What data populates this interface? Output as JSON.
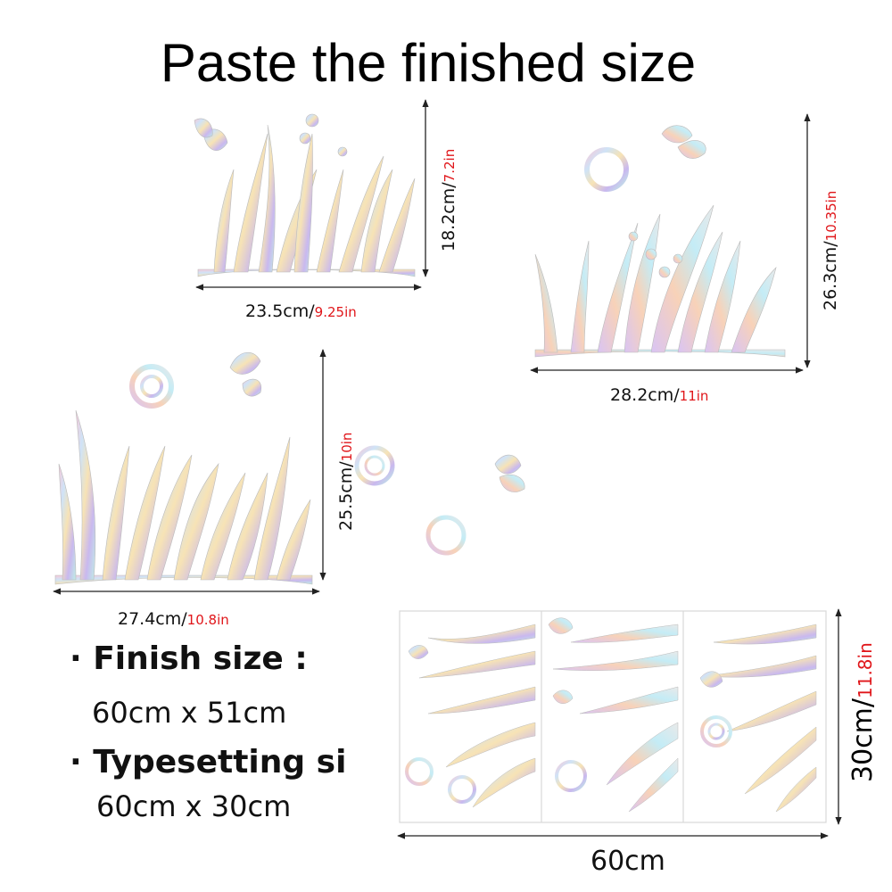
{
  "title": "Paste the finished size",
  "pieces": [
    {
      "cm": "18.2cm/",
      "in": "7.2in",
      "cm_w": "23.5cm/",
      "in_w": "9.25in"
    },
    {
      "cm": "26.3cm/",
      "in": "10.35in",
      "cm_w": "28.2cm/",
      "in_w": "11in"
    },
    {
      "cm": "25.5cm/",
      "in": "10in",
      "cm_w": "27.4cm/",
      "in_w": "10.8in"
    }
  ],
  "specs": {
    "finish_label": "· Finish size :",
    "finish_value": "60cm x 51cm",
    "typesetting_label": "· Typesetting si",
    "typesetting_value": "60cm  x 30cm"
  },
  "sheet": {
    "width_label": "60cm",
    "height_cm": "30cm/",
    "height_in": "11.8in"
  },
  "colors": {
    "accent": "#e0161a",
    "text": "#111111"
  }
}
